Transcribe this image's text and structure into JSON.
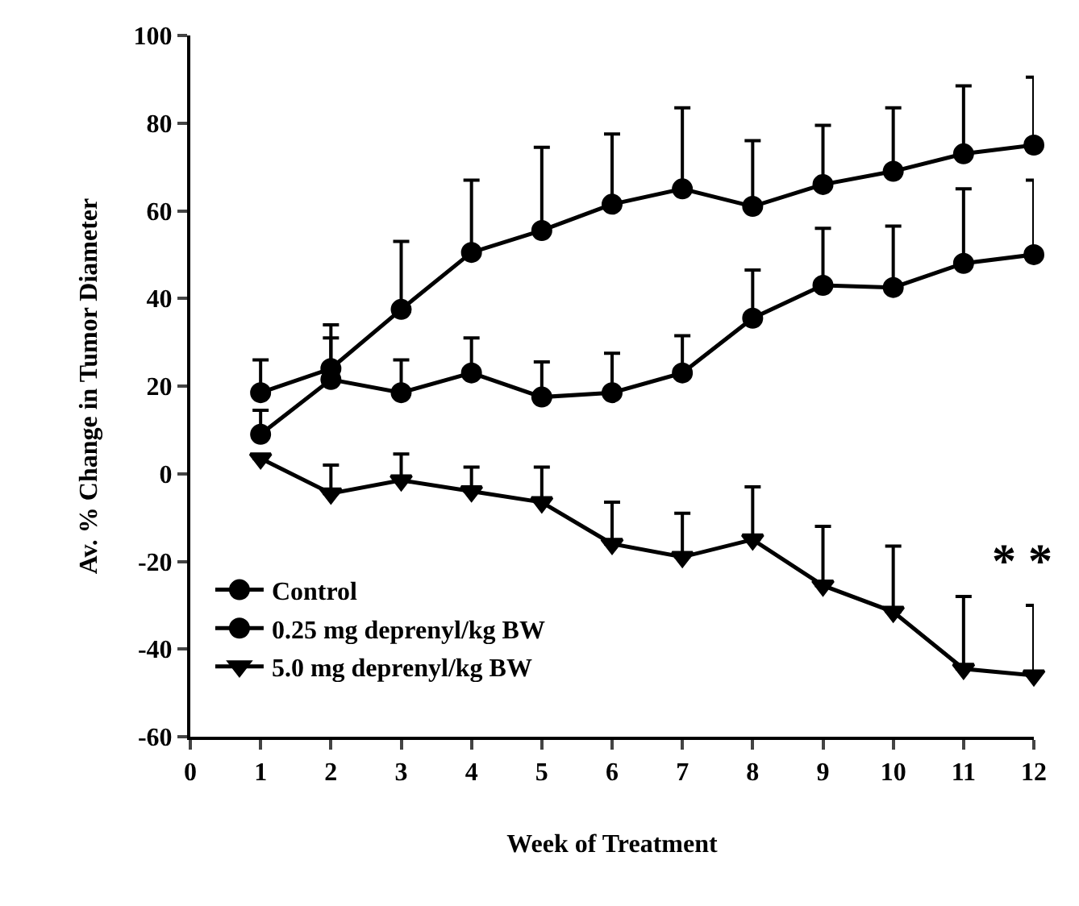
{
  "chart_data": {
    "type": "line",
    "xlabel": "Week of Treatment",
    "ylabel": "Av. % Change in Tumor Diameter",
    "x": [
      1,
      2,
      3,
      4,
      5,
      6,
      7,
      8,
      9,
      10,
      11,
      12
    ],
    "series": [
      {
        "name": "Control",
        "color": "#000000",
        "marker": "circle",
        "values": [
          18.5,
          24,
          37.5,
          50.5,
          55.5,
          61.5,
          65,
          61,
          66,
          69,
          73,
          75
        ],
        "errors": [
          [
            18.5,
            26
          ],
          [
            24,
            34
          ],
          [
            37.5,
            53
          ],
          [
            50.5,
            67
          ],
          [
            55.5,
            74.5
          ],
          [
            61.5,
            77.5
          ],
          [
            65,
            83.5
          ],
          [
            61,
            76
          ],
          [
            66,
            79.5
          ],
          [
            69,
            83.5
          ],
          [
            73,
            88.5
          ],
          [
            75,
            90.5
          ]
        ]
      },
      {
        "name": "0.25 mg deprenyl/kg BW",
        "color": "#000000",
        "marker": "circle",
        "values": [
          9,
          21.5,
          18.5,
          23,
          17.5,
          18.5,
          23,
          35.5,
          43,
          42.5,
          48,
          50
        ],
        "errors": [
          [
            9,
            14.5
          ],
          [
            21.5,
            31
          ],
          [
            18.5,
            26
          ],
          [
            23,
            31
          ],
          [
            17.5,
            25.5
          ],
          [
            18.5,
            27.5
          ],
          [
            23,
            31.5
          ],
          [
            35.5,
            46.5
          ],
          [
            43,
            56
          ],
          [
            42.5,
            56.5
          ],
          [
            48,
            65
          ],
          [
            50,
            67
          ]
        ]
      },
      {
        "name": "5.0 mg deprenyl/kg BW",
        "color": "#000000",
        "marker": "triangle",
        "values": [
          3.5,
          -4.5,
          -1.5,
          -4,
          -6.5,
          -16,
          -19,
          -15,
          -25.5,
          -31.5,
          -44.5,
          -46
        ],
        "errors": [
          null,
          [
            -4.5,
            2
          ],
          [
            -1.5,
            4.5
          ],
          [
            -4,
            1.5
          ],
          [
            -6.5,
            1.5
          ],
          [
            -16,
            -6.5
          ],
          [
            -19,
            -9
          ],
          [
            -15,
            -3
          ],
          [
            -25.5,
            -12
          ],
          [
            -31.5,
            -16.5
          ],
          [
            -44.5,
            -28
          ],
          [
            -46,
            -30
          ]
        ]
      }
    ],
    "annotations": [
      {
        "text": "* *",
        "x": 12,
        "y": -30
      }
    ],
    "xlim": [
      0,
      12
    ],
    "xticks": [
      0,
      1,
      2,
      3,
      4,
      5,
      6,
      7,
      8,
      9,
      10,
      11,
      12
    ],
    "ylim": [
      -60,
      100
    ],
    "yticks": [
      -60,
      -40,
      -20,
      0,
      20,
      40,
      60,
      80,
      100
    ],
    "grid": false,
    "legend": "bottom left",
    "line_style": "solid"
  }
}
